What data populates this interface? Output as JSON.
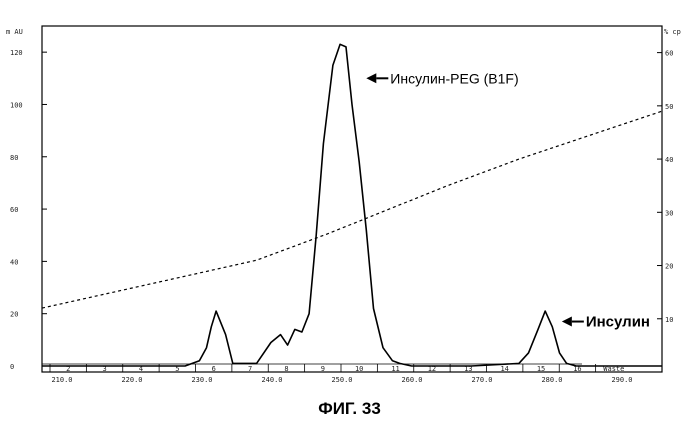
{
  "caption": "ФИГ. 33",
  "chart_data": {
    "type": "line",
    "title": "",
    "xlabel": "",
    "ylabel": "",
    "left_axis": {
      "unit_label": "m AU",
      "ticks": [
        0,
        20,
        40,
        60,
        80,
        100,
        120
      ],
      "ylim": [
        0,
        130
      ]
    },
    "right_axis": {
      "unit_label": "% ср",
      "ticks": [
        10,
        20,
        30,
        40,
        50,
        60
      ],
      "ylim": [
        0,
        65
      ]
    },
    "xlim": [
      0,
      26
    ],
    "fraction_labels": [
      "2",
      "3",
      "4",
      "5",
      "6",
      "7",
      "8",
      "9",
      "10",
      "11",
      "12",
      "13",
      "14",
      "15",
      "16",
      "Waste"
    ],
    "bottom_labels": [
      "210.0",
      "220.0",
      "230.0",
      "240.0",
      "250.0",
      "260.0",
      "270.0",
      "280.0",
      "290.0"
    ],
    "series": [
      {
        "style": "solid",
        "x": [
          0,
          6.0,
          6.6,
          6.9,
          7.1,
          7.3,
          7.7,
          8.0,
          9.0,
          9.6,
          10.0,
          10.3,
          10.6,
          10.9,
          11.2,
          11.5,
          11.8,
          12.2,
          12.5,
          12.75,
          13.0,
          13.3,
          13.6,
          13.9,
          14.3,
          14.7,
          15.0,
          15.5,
          18.0,
          20.0,
          20.4,
          20.8,
          21.1,
          21.4,
          21.7,
          22.0,
          22.4,
          26.0
        ],
        "y": [
          0,
          0,
          2,
          7,
          15,
          21,
          12,
          1,
          1,
          9,
          12,
          8,
          14,
          13,
          20,
          50,
          85,
          115,
          123,
          122,
          100,
          78,
          52,
          22,
          7,
          2,
          1,
          0,
          0,
          1,
          5,
          14,
          21,
          15,
          5,
          1,
          0,
          0
        ]
      },
      {
        "style": "dashed",
        "axis": "right",
        "x": [
          0,
          6.0,
          9.0,
          12.0,
          17.0,
          20.0,
          24.0,
          26.0
        ],
        "y": [
          12,
          18,
          21,
          26,
          35,
          40,
          46,
          49
        ]
      }
    ],
    "annotations": [
      {
        "text": "Инсулин-PEG (B1F)",
        "x": 13.6,
        "y": 110
      },
      {
        "text": "Инсулин",
        "x": 21.8,
        "y": 17
      }
    ],
    "grid": false,
    "legend": "none"
  }
}
